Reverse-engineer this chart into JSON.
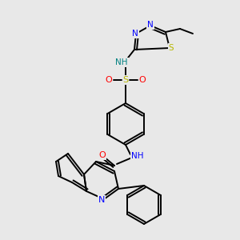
{
  "background_color": "#e8e8e8",
  "bond_color": "#000000",
  "lw": 1.4,
  "atom_colors": {
    "N": "#0000ff",
    "S": "#cccc00",
    "O": "#ff0000",
    "NH_sulfonamide": "#008080",
    "NH_amide": "#0000ff",
    "C": "#000000"
  },
  "font_size": 7.5,
  "xlim": [
    0,
    300
  ],
  "ylim": [
    0,
    300
  ]
}
